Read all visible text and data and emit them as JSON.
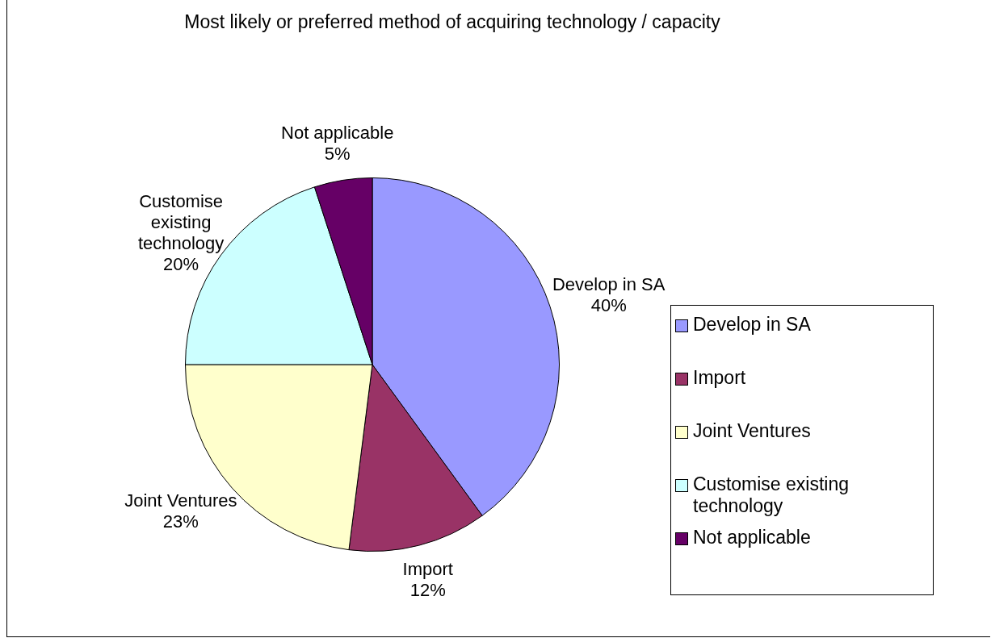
{
  "chart_data": {
    "type": "pie",
    "title": "Most likely or preferred method of acquiring technology / capacity",
    "categories": [
      "Develop in SA",
      "Import",
      "Joint Ventures",
      "Customise existing technology",
      "Not applicable"
    ],
    "values": [
      40,
      12,
      23,
      20,
      5
    ],
    "colors": [
      "#9999ff",
      "#993366",
      "#ffffcc",
      "#ccffff",
      "#660066"
    ],
    "value_labels": [
      "40%",
      "12%",
      "23%",
      "20%",
      "5%"
    ],
    "legend": "right"
  }
}
